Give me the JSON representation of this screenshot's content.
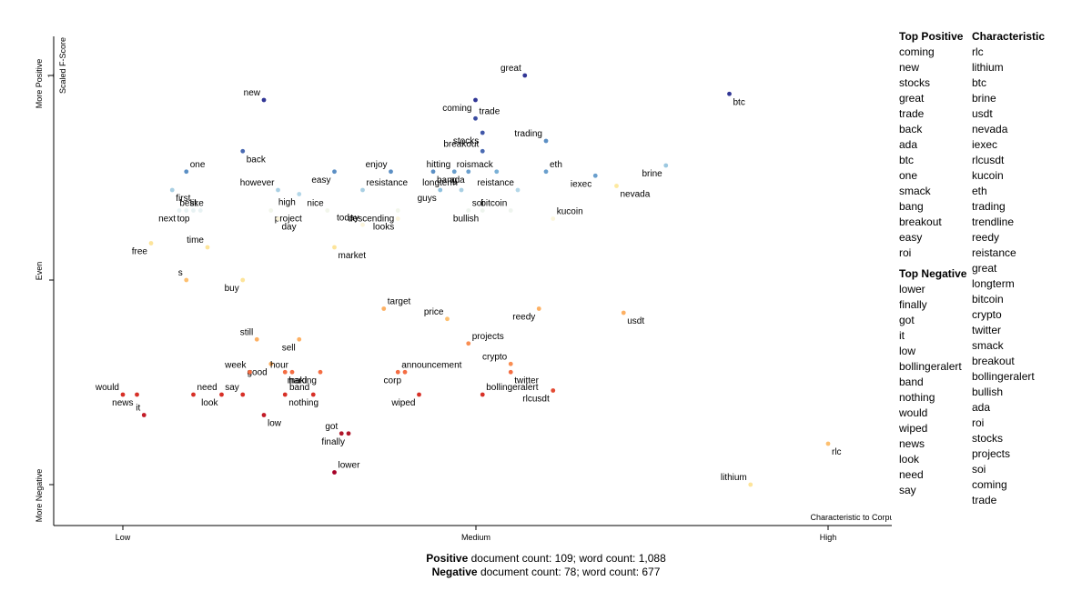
{
  "chart_data": {
    "type": "scatter",
    "y_axis": {
      "label": "Scaled F-Score",
      "top_label": "More Positive",
      "middle_label": "Even",
      "bottom_label": "More Negative",
      "tick": "1"
    },
    "x_axis": {
      "label": "Characteristic to Corpus",
      "ticks": [
        "Low",
        "Medium",
        "High"
      ],
      "xlim": [
        0,
        1
      ]
    },
    "ylim": [
      -1,
      1
    ],
    "points": [
      {
        "term": "great",
        "x": 0.57,
        "y": 1.0,
        "color": "#313695"
      },
      {
        "term": "btc",
        "x": 0.86,
        "y": 0.91,
        "color": "#313695"
      },
      {
        "term": "new",
        "x": 0.2,
        "y": 0.88,
        "color": "#313695"
      },
      {
        "term": "coming",
        "x": 0.5,
        "y": 0.88,
        "color": "#313695"
      },
      {
        "term": "trade",
        "x": 0.5,
        "y": 0.79,
        "color": "#3b4ca1"
      },
      {
        "term": "stocks",
        "x": 0.51,
        "y": 0.72,
        "color": "#4157a8"
      },
      {
        "term": "trading",
        "x": 0.6,
        "y": 0.68,
        "color": "#5b8fc4"
      },
      {
        "term": "back",
        "x": 0.17,
        "y": 0.63,
        "color": "#4a6ab2"
      },
      {
        "term": "breakout",
        "x": 0.51,
        "y": 0.63,
        "color": "#4a6ab2"
      },
      {
        "term": "brine",
        "x": 0.77,
        "y": 0.56,
        "color": "#9cc8e0"
      },
      {
        "term": "one",
        "x": 0.09,
        "y": 0.53,
        "color": "#5b8fc4"
      },
      {
        "term": "easy",
        "x": 0.3,
        "y": 0.53,
        "color": "#5b8fc4"
      },
      {
        "term": "enjoy",
        "x": 0.38,
        "y": 0.53,
        "color": "#5b8fc4"
      },
      {
        "term": "bang",
        "x": 0.44,
        "y": 0.53,
        "color": "#5b8fc4"
      },
      {
        "term": "hitting",
        "x": 0.47,
        "y": 0.53,
        "color": "#6a9fcd"
      },
      {
        "term": "ada",
        "x": 0.49,
        "y": 0.53,
        "color": "#6a9fcd"
      },
      {
        "term": "eth",
        "x": 0.6,
        "y": 0.53,
        "color": "#6a9fcd"
      },
      {
        "term": "iexec",
        "x": 0.67,
        "y": 0.51,
        "color": "#6a9fcd"
      },
      {
        "term": "roismack",
        "x": 0.53,
        "y": 0.53,
        "color": "#7ab0d6"
      },
      {
        "term": "first",
        "x": 0.07,
        "y": 0.44,
        "color": "#a9cfe3"
      },
      {
        "term": "however",
        "x": 0.22,
        "y": 0.44,
        "color": "#a9cfe3"
      },
      {
        "term": "high",
        "x": 0.25,
        "y": 0.42,
        "color": "#b4d7e8"
      },
      {
        "term": "resistance",
        "x": 0.34,
        "y": 0.44,
        "color": "#a9cfe3"
      },
      {
        "term": "guys",
        "x": 0.45,
        "y": 0.44,
        "color": "#8fc1de"
      },
      {
        "term": "longterm",
        "x": 0.48,
        "y": 0.44,
        "color": "#a9cfe3"
      },
      {
        "term": "nevada",
        "x": 0.7,
        "y": 0.46,
        "color": "#fde9a0"
      },
      {
        "term": "reistance",
        "x": 0.56,
        "y": 0.44,
        "color": "#b4d7e8"
      },
      {
        "term": "next",
        "x": 0.08,
        "y": 0.34,
        "color": "#e8f2f3"
      },
      {
        "term": "like",
        "x": 0.09,
        "y": 0.34,
        "color": "#e8f2f3"
      },
      {
        "term": "top",
        "x": 0.1,
        "y": 0.34,
        "color": "#e8f2f3"
      },
      {
        "term": "best",
        "x": 0.11,
        "y": 0.34,
        "color": "#e8f2f3"
      },
      {
        "term": "project",
        "x": 0.21,
        "y": 0.34,
        "color": "#f2f6eb"
      },
      {
        "term": "nice",
        "x": 0.29,
        "y": 0.34,
        "color": "#f2f6eb"
      },
      {
        "term": "descending",
        "x": 0.39,
        "y": 0.34,
        "color": "#f2f6eb"
      },
      {
        "term": "soi",
        "x": 0.49,
        "y": 0.34,
        "color": "#eef4ee"
      },
      {
        "term": "bullish",
        "x": 0.51,
        "y": 0.34,
        "color": "#eef4ee"
      },
      {
        "term": "bitcoin",
        "x": 0.55,
        "y": 0.34,
        "color": "#eef4ee"
      },
      {
        "term": "day",
        "x": 0.22,
        "y": 0.3,
        "color": "#fbf5dc"
      },
      {
        "term": "today",
        "x": 0.34,
        "y": 0.27,
        "color": "#fbf5dc"
      },
      {
        "term": "looks",
        "x": 0.39,
        "y": 0.3,
        "color": "#fbf5dc"
      },
      {
        "term": "kucoin",
        "x": 0.61,
        "y": 0.3,
        "color": "#fbf5dc"
      },
      {
        "term": "free",
        "x": 0.04,
        "y": 0.18,
        "color": "#fde49a"
      },
      {
        "term": "time",
        "x": 0.12,
        "y": 0.16,
        "color": "#fde49a"
      },
      {
        "term": "market",
        "x": 0.3,
        "y": 0.16,
        "color": "#fde49a"
      },
      {
        "term": "s",
        "x": 0.09,
        "y": 0.0,
        "color": "#fdbf6f"
      },
      {
        "term": "buy",
        "x": 0.17,
        "y": 0.0,
        "color": "#fde49a"
      },
      {
        "term": "target",
        "x": 0.37,
        "y": -0.14,
        "color": "#fdb063"
      },
      {
        "term": "reedy",
        "x": 0.59,
        "y": -0.14,
        "color": "#fdb063"
      },
      {
        "term": "price",
        "x": 0.46,
        "y": -0.19,
        "color": "#fdbf6f"
      },
      {
        "term": "usdt",
        "x": 0.71,
        "y": -0.16,
        "color": "#fdb063"
      },
      {
        "term": "still",
        "x": 0.19,
        "y": -0.29,
        "color": "#fdb063"
      },
      {
        "term": "sell",
        "x": 0.25,
        "y": -0.29,
        "color": "#fdb063"
      },
      {
        "term": "projects",
        "x": 0.49,
        "y": -0.31,
        "color": "#f98e52"
      },
      {
        "term": "good",
        "x": 0.21,
        "y": -0.41,
        "color": "#fdb063"
      },
      {
        "term": "week",
        "x": 0.18,
        "y": -0.45,
        "color": "#f46d43"
      },
      {
        "term": "hard",
        "x": 0.23,
        "y": -0.45,
        "color": "#f46d43"
      },
      {
        "term": "hour",
        "x": 0.24,
        "y": -0.45,
        "color": "#f46d43"
      },
      {
        "term": "making",
        "x": 0.28,
        "y": -0.45,
        "color": "#f46d43"
      },
      {
        "term": "announcement",
        "x": 0.39,
        "y": -0.45,
        "color": "#f46d43"
      },
      {
        "term": "corp",
        "x": 0.4,
        "y": -0.45,
        "color": "#f46d43"
      },
      {
        "term": "crypto",
        "x": 0.55,
        "y": -0.41,
        "color": "#f98e52"
      },
      {
        "term": "twitter",
        "x": 0.55,
        "y": -0.45,
        "color": "#f46d43"
      },
      {
        "term": "would",
        "x": 0.0,
        "y": -0.56,
        "color": "#d73027"
      },
      {
        "term": "news",
        "x": 0.02,
        "y": -0.56,
        "color": "#d73027"
      },
      {
        "term": "need",
        "x": 0.1,
        "y": -0.56,
        "color": "#d73027"
      },
      {
        "term": "look",
        "x": 0.14,
        "y": -0.56,
        "color": "#d73027"
      },
      {
        "term": "say",
        "x": 0.17,
        "y": -0.56,
        "color": "#d73027"
      },
      {
        "term": "nothing",
        "x": 0.23,
        "y": -0.56,
        "color": "#d73027"
      },
      {
        "term": "band",
        "x": 0.27,
        "y": -0.56,
        "color": "#d73027"
      },
      {
        "term": "wiped",
        "x": 0.42,
        "y": -0.56,
        "color": "#d73027"
      },
      {
        "term": "bollingeralert",
        "x": 0.51,
        "y": -0.56,
        "color": "#d73027"
      },
      {
        "term": "rlcusdt",
        "x": 0.61,
        "y": -0.54,
        "color": "#e34a33"
      },
      {
        "term": "it",
        "x": 0.03,
        "y": -0.66,
        "color": "#c21b27"
      },
      {
        "term": "low",
        "x": 0.2,
        "y": -0.66,
        "color": "#c21b27"
      },
      {
        "term": "got",
        "x": 0.31,
        "y": -0.75,
        "color": "#b0172a"
      },
      {
        "term": "finally",
        "x": 0.32,
        "y": -0.75,
        "color": "#b0172a"
      },
      {
        "term": "lower",
        "x": 0.3,
        "y": -0.94,
        "color": "#a50026"
      },
      {
        "term": "rlc",
        "x": 1.0,
        "y": -0.8,
        "color": "#fdbf6f"
      },
      {
        "term": "lithium",
        "x": 0.89,
        "y": -1.0,
        "color": "#fde49a"
      }
    ]
  },
  "lists": {
    "top_positive": {
      "header": "Top Positive",
      "items": [
        "coming",
        "new",
        "stocks",
        "great",
        "trade",
        "back",
        "ada",
        "btc",
        "one",
        "smack",
        "bang",
        "breakout",
        "easy",
        "roi"
      ]
    },
    "top_negative": {
      "header": "Top Negative",
      "items": [
        "lower",
        "finally",
        "got",
        "it",
        "low",
        "bollingeralert",
        "band",
        "nothing",
        "would",
        "wiped",
        "news",
        "look",
        "need",
        "say"
      ]
    },
    "characteristic": {
      "header": "Characteristic",
      "items": [
        "rlc",
        "lithium",
        "btc",
        "brine",
        "usdt",
        "nevada",
        "iexec",
        "rlcusdt",
        "kucoin",
        "eth",
        "trading",
        "trendline",
        "reedy",
        "reistance",
        "great",
        "longterm",
        "bitcoin",
        "crypto",
        "twitter",
        "smack",
        "breakout",
        "bollingeralert",
        "bullish",
        "ada",
        "roi",
        "stocks",
        "projects",
        "soi",
        "coming",
        "trade"
      ]
    }
  },
  "footer": {
    "positive_label": "Positive",
    "positive_text": " document count: 109; word count: 1,088",
    "negative_label": "Negative",
    "negative_text": " document count: 78; word count: 677"
  }
}
